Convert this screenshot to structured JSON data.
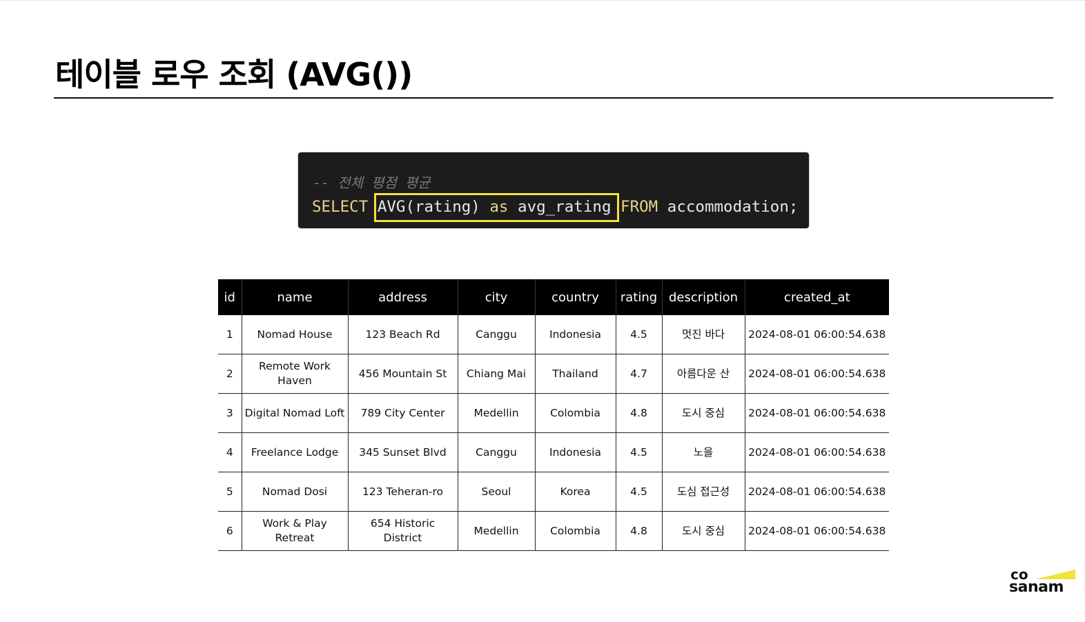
{
  "title": "테이블 로우 조회 (AVG())",
  "code": {
    "comment": "-- 전체 평점 평균",
    "select_kw": "SELECT",
    "fn": "AVG(rating)",
    "as_kw": "as",
    "alias": "avg_rating",
    "from_kw": "FROM",
    "table": "accommodation;"
  },
  "table": {
    "columns": [
      "id",
      "name",
      "address",
      "city",
      "country",
      "rating",
      "description",
      "created_at"
    ],
    "rows": [
      [
        "1",
        "Nomad House",
        "123 Beach Rd",
        "Canggu",
        "Indonesia",
        "4.5",
        "멋진 바다",
        "2024-08-01 06:00:54.638"
      ],
      [
        "2",
        "Remote Work Haven",
        "456 Mountain St",
        "Chiang Mai",
        "Thailand",
        "4.7",
        "아름다운 산",
        "2024-08-01 06:00:54.638"
      ],
      [
        "3",
        "Digital Nomad Loft",
        "789 City Center",
        "Medellin",
        "Colombia",
        "4.8",
        "도시 중심",
        "2024-08-01 06:00:54.638"
      ],
      [
        "4",
        "Freelance Lodge",
        "345 Sunset Blvd",
        "Canggu",
        "Indonesia",
        "4.5",
        "노을",
        "2024-08-01 06:00:54.638"
      ],
      [
        "5",
        "Nomad Dosi",
        "123 Teheran-ro",
        "Seoul",
        "Korea",
        "4.5",
        "도심 접근성",
        "2024-08-01 06:00:54.638"
      ],
      [
        "6",
        "Work & Play Retreat",
        "654 Historic District",
        "Medellin",
        "Colombia",
        "4.8",
        "도시 중심",
        "2024-08-01 06:00:54.638"
      ]
    ]
  },
  "logo": {
    "line1": "co",
    "line2": "sanam",
    "accent_color": "#f2e23a"
  },
  "colors": {
    "code_bg": "#1c1c1c",
    "keyword": "#e9d489",
    "highlight": "#f2e23a",
    "header_bg": "#000000"
  }
}
